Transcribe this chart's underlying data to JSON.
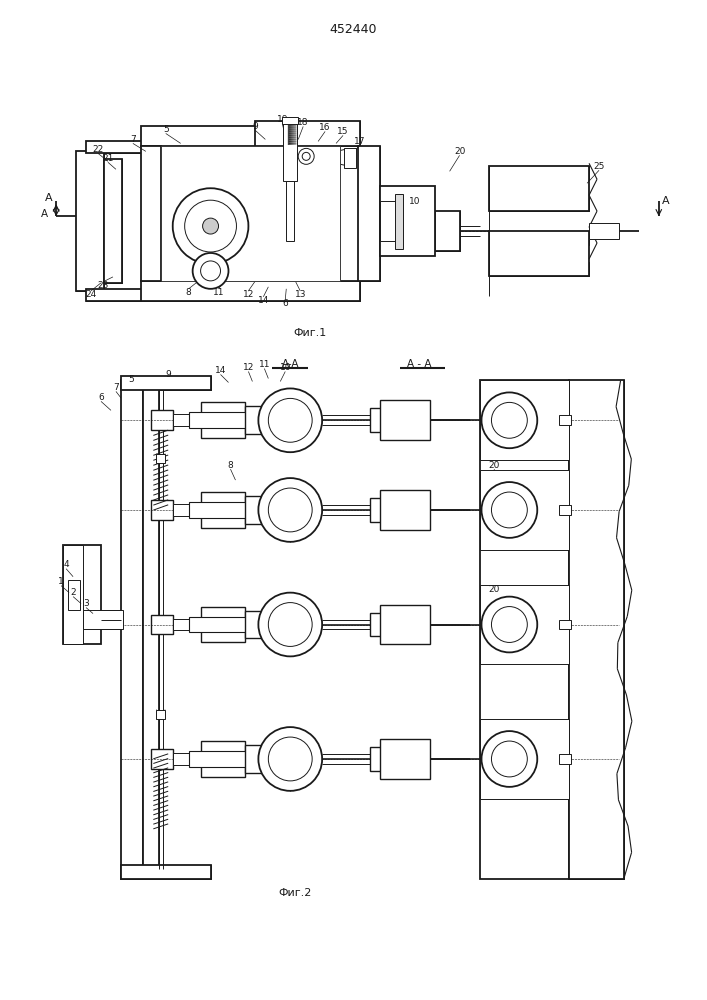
{
  "title": "452440",
  "fig1_label": "Фиг.1",
  "fig2_label": "Фиг.2",
  "fig_width": 7.07,
  "fig_height": 10.0,
  "dpi": 100,
  "bg_color": "#ffffff",
  "line_color": "#1a1a1a",
  "lw": 0.7,
  "tlw": 1.3
}
